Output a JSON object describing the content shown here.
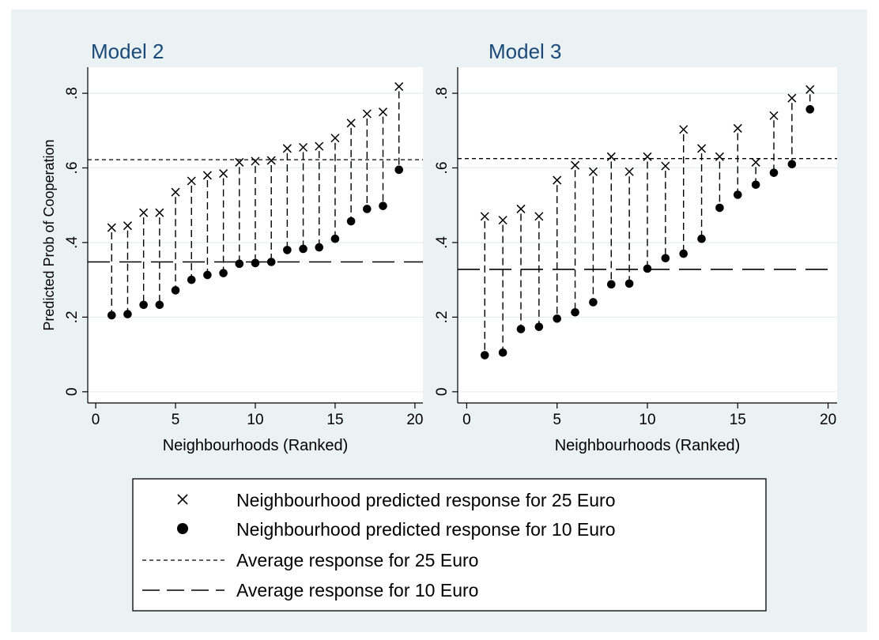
{
  "chart_data": [
    {
      "type": "scatter",
      "title": "Model 2",
      "xlabel": "Neighbourhoods (Ranked)",
      "ylabel": "Predicted Prob of Cooperation",
      "xlim": [
        -0.5,
        20.5
      ],
      "ylim": [
        -0.03,
        0.87
      ],
      "xticks": [
        0,
        5,
        10,
        15,
        20
      ],
      "xtick_labels": [
        "0",
        "5",
        "10",
        "15",
        "20"
      ],
      "yticks": [
        0,
        0.2,
        0.4,
        0.6,
        0.8
      ],
      "ytick_labels": [
        "0",
        ".2",
        ".4",
        ".6",
        ".8"
      ],
      "grid": true,
      "x": [
        1,
        2,
        3,
        4,
        5,
        6,
        7,
        8,
        9,
        10,
        11,
        12,
        13,
        14,
        15,
        16,
        17,
        18,
        19
      ],
      "series": [
        {
          "name": "Neighbourhood predicted response for 25 Euro",
          "marker": "x",
          "values": [
            0.44,
            0.445,
            0.48,
            0.48,
            0.535,
            0.565,
            0.58,
            0.585,
            0.615,
            0.618,
            0.62,
            0.652,
            0.655,
            0.658,
            0.68,
            0.72,
            0.745,
            0.75,
            0.818
          ]
        },
        {
          "name": "Neighbourhood predicted response for 10 Euro",
          "marker": "dot",
          "values": [
            0.205,
            0.208,
            0.233,
            0.233,
            0.272,
            0.3,
            0.313,
            0.318,
            0.343,
            0.345,
            0.348,
            0.38,
            0.383,
            0.387,
            0.41,
            0.457,
            0.49,
            0.498,
            0.595
          ]
        }
      ],
      "avg_25": 0.622,
      "avg_10": 0.348
    },
    {
      "type": "scatter",
      "title": "Model 3",
      "xlabel": "Neighbourhoods (Ranked)",
      "ylabel": "",
      "xlim": [
        -0.5,
        20.5
      ],
      "ylim": [
        -0.03,
        0.87
      ],
      "xticks": [
        0,
        5,
        10,
        15,
        20
      ],
      "xtick_labels": [
        "0",
        "5",
        "10",
        "15",
        "20"
      ],
      "yticks": [
        0,
        0.2,
        0.4,
        0.6,
        0.8
      ],
      "ytick_labels": [
        "0",
        ".2",
        ".4",
        ".6",
        ".8"
      ],
      "grid": true,
      "x": [
        1,
        2,
        3,
        4,
        5,
        6,
        7,
        8,
        9,
        10,
        11,
        12,
        13,
        14,
        15,
        16,
        17,
        18,
        19
      ],
      "series": [
        {
          "name": "Neighbourhood predicted response for 25 Euro",
          "marker": "x",
          "values": [
            0.47,
            0.46,
            0.49,
            0.47,
            0.567,
            0.607,
            0.59,
            0.63,
            0.59,
            0.63,
            0.605,
            0.703,
            0.652,
            0.63,
            0.706,
            0.615,
            0.74,
            0.787,
            0.81
          ]
        },
        {
          "name": "Neighbourhood predicted response for 10 Euro",
          "marker": "dot",
          "values": [
            0.098,
            0.105,
            0.168,
            0.174,
            0.196,
            0.213,
            0.24,
            0.288,
            0.29,
            0.33,
            0.358,
            0.37,
            0.41,
            0.493,
            0.528,
            0.555,
            0.587,
            0.61,
            0.757
          ]
        }
      ],
      "avg_25": 0.625,
      "avg_10": 0.328
    }
  ],
  "legend": {
    "items": [
      {
        "symbol": "x",
        "label": "Neighbourhood predicted response for 25 Euro"
      },
      {
        "symbol": "dot",
        "label": "Neighbourhood predicted response for 10 Euro"
      },
      {
        "symbol": "short-dash",
        "label": "Average response for 25 Euro"
      },
      {
        "symbol": "long-dash",
        "label": "Average response for 10 Euro"
      }
    ]
  },
  "colors": {
    "background": "#eaf2f3",
    "plot_area": "#ffffff",
    "title": "#1a4a7a",
    "ink": "#000000",
    "grid": "#e3eaec"
  }
}
